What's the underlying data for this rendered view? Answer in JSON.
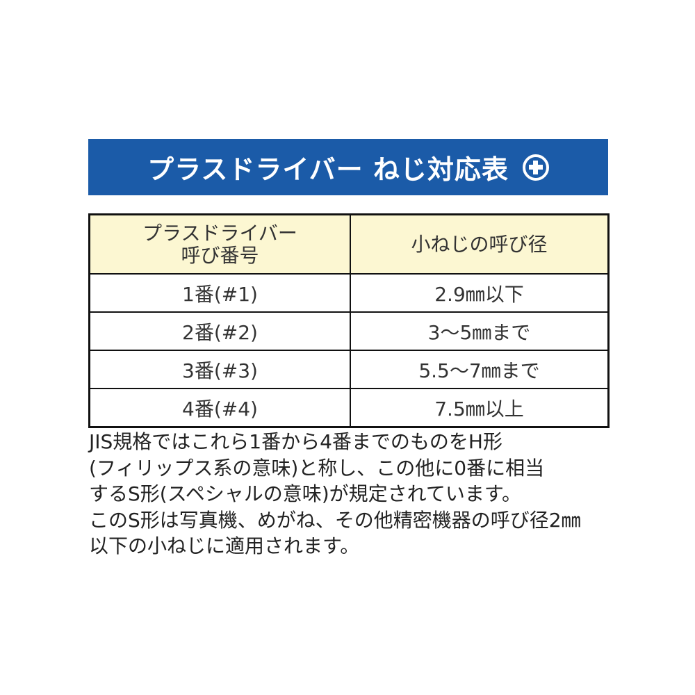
{
  "banner": {
    "title": "プラスドライバー ねじ対応表",
    "icon": "phillips-plus-icon",
    "color": "#1b5ba8"
  },
  "table": {
    "headers": [
      "プラスドライバー\n呼び番号",
      "小ねじの呼び径"
    ],
    "header_lines": [
      "プラスドライバー",
      "呼び番号"
    ],
    "header_bg": "#fcf7d2",
    "rows": [
      [
        "1番(#1)",
        "2.9㎜以下"
      ],
      [
        "2番(#2)",
        "3〜5㎜まで"
      ],
      [
        "3番(#3)",
        "5.5〜7㎜まで"
      ],
      [
        "4番(#4)",
        "7.5㎜以上"
      ]
    ]
  },
  "notes": [
    "JIS規格ではこれら1番から4番までのものをH形",
    "(フィリップス系の意味)と称し、この他に0番に相当",
    "するS形(スペシャルの意味)が規定されています。",
    "このS形は写真機、めがね、その他精密機器の呼び径2㎜",
    "以下の小ねじに適用されます。"
  ]
}
